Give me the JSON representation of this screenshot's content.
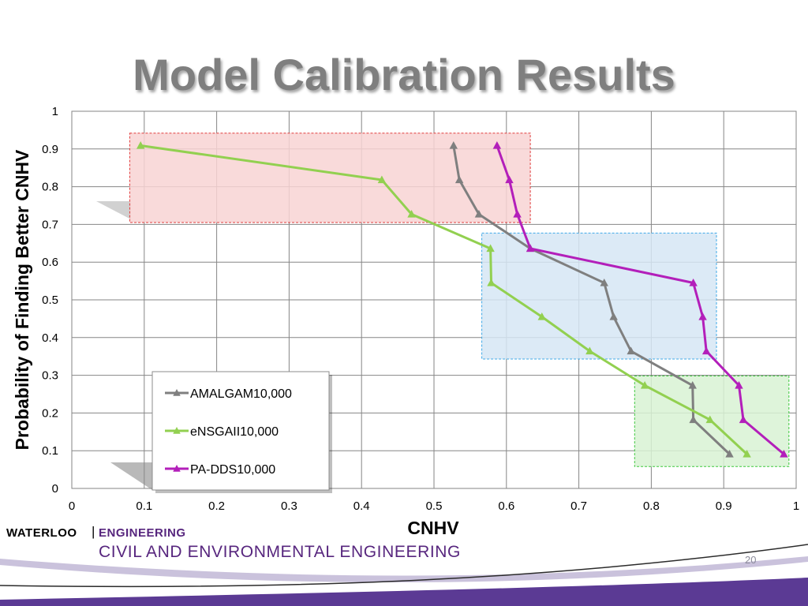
{
  "slide": {
    "title": "Model Calibration Results",
    "brand_left": "WATERLOO",
    "brand_separator": "|",
    "brand_right": "ENGINEERING",
    "department": "CIVIL AND ENVIRONMENTAL ENGINEERING",
    "page_number": "20",
    "brand_color": "#57267e",
    "footer_bar_color": "#5b3a94"
  },
  "chart_data": {
    "type": "line",
    "title": "",
    "xlabel": "CNHV",
    "ylabel": "Probability of Finding Better CNHV",
    "xlim": [
      0,
      1
    ],
    "ylim": [
      0,
      1
    ],
    "x_ticks": [
      "0",
      "0.1",
      "0.2",
      "0.3",
      "0.4",
      "0.5",
      "0.6",
      "0.7",
      "0.8",
      "0.9",
      "1"
    ],
    "y_ticks": [
      "0",
      "0.1",
      "0.2",
      "0.3",
      "0.4",
      "0.5",
      "0.6",
      "0.7",
      "0.8",
      "0.9",
      "1"
    ],
    "grid": true,
    "legend_position": "bottom-left",
    "series": [
      {
        "name": "AMALGAM10,000",
        "color": "#7f7f7f",
        "points": [
          [
            0.527,
            0.909
          ],
          [
            0.535,
            0.818
          ],
          [
            0.562,
            0.727
          ],
          [
            0.633,
            0.636
          ],
          [
            0.735,
            0.545
          ],
          [
            0.748,
            0.455
          ],
          [
            0.772,
            0.364
          ],
          [
            0.857,
            0.273
          ],
          [
            0.858,
            0.182
          ],
          [
            0.908,
            0.091
          ]
        ]
      },
      {
        "name": "eNSGAII10,000",
        "color": "#92d050",
        "points": [
          [
            0.095,
            0.909
          ],
          [
            0.428,
            0.818
          ],
          [
            0.469,
            0.727
          ],
          [
            0.578,
            0.636
          ],
          [
            0.579,
            0.545
          ],
          [
            0.649,
            0.455
          ],
          [
            0.715,
            0.364
          ],
          [
            0.791,
            0.273
          ],
          [
            0.881,
            0.182
          ],
          [
            0.932,
            0.091
          ]
        ]
      },
      {
        "name": "PA-DDS10,000",
        "color": "#b31fba",
        "points": [
          [
            0.587,
            0.909
          ],
          [
            0.604,
            0.818
          ],
          [
            0.615,
            0.727
          ],
          [
            0.633,
            0.636
          ],
          [
            0.858,
            0.545
          ],
          [
            0.871,
            0.455
          ],
          [
            0.876,
            0.364
          ],
          [
            0.921,
            0.273
          ],
          [
            0.927,
            0.182
          ],
          [
            0.983,
            0.091
          ]
        ]
      }
    ],
    "highlight_boxes": [
      {
        "color": "#e03c3c",
        "fill": "#f8d4d4",
        "x": [
          0.08,
          0.633
        ],
        "y": [
          0.705,
          0.942
        ]
      },
      {
        "color": "#3fa9e8",
        "fill": "#d6e6f5",
        "x": [
          0.566,
          0.89
        ],
        "y": [
          0.343,
          0.677
        ]
      },
      {
        "color": "#3cc83c",
        "fill": "#d8f2d4",
        "x": [
          0.777,
          0.99
        ],
        "y": [
          0.058,
          0.298
        ]
      }
    ]
  }
}
